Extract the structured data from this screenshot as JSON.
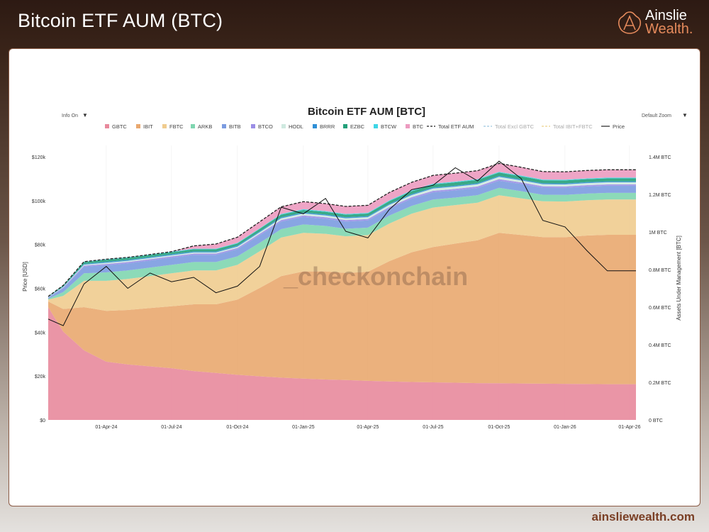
{
  "header": {
    "title": "Bitcoin ETF AUM (BTC)"
  },
  "logo": {
    "line1": "Ainslie",
    "line2": "Wealth."
  },
  "footer": {
    "url": "ainsliewealth.com"
  },
  "controls": {
    "info": "Info On",
    "zoom": "Default Zoom"
  },
  "watermark": "_checkonchain",
  "chart_data": {
    "type": "area",
    "title": "Bitcoin ETF AUM [BTC]",
    "ylabel_left": "Price [USD]",
    "ylabel_right": "Assets Under Management [BTC]",
    "ylim_left": [
      0,
      120000
    ],
    "ylim_right": [
      0,
      1400000
    ],
    "left_ticks": [
      "$0",
      "$20k",
      "$40k",
      "$60k",
      "$80k",
      "$100k",
      "$120k"
    ],
    "right_ticks": [
      "0 BTC",
      "0.2M BTC",
      "0.4M BTC",
      "0.6M BTC",
      "0.8M BTC",
      "1M BTC",
      "1.2M BTC",
      "1.4M BTC"
    ],
    "x_ticks": [
      {
        "date": "2024-04-01",
        "label": "01-Apr-24"
      },
      {
        "date": "2024-07-01",
        "label": "01-Jul-24"
      },
      {
        "date": "2024-10-01",
        "label": "01-Oct-24"
      },
      {
        "date": "2025-01-01",
        "label": "01-Jan-25"
      },
      {
        "date": "2025-04-01",
        "label": "01-Apr-25"
      },
      {
        "date": "2025-07-01",
        "label": "01-Jul-25"
      },
      {
        "date": "2025-10-01",
        "label": "01-Oct-25"
      },
      {
        "date": "2026-01-01",
        "label": "01-Jan-26"
      },
      {
        "date": "2026-04-01",
        "label": "01-Apr-26"
      }
    ],
    "x_domain": [
      "2024-01-11",
      "2026-04-10"
    ],
    "dates": [
      "2024-01-11",
      "2024-02-01",
      "2024-03-01",
      "2024-04-01",
      "2024-05-01",
      "2024-06-01",
      "2024-07-01",
      "2024-08-01",
      "2024-09-01",
      "2024-10-01",
      "2024-11-01",
      "2024-12-01",
      "2025-01-01",
      "2025-02-01",
      "2025-03-01",
      "2025-04-01",
      "2025-05-01",
      "2025-06-01",
      "2025-07-01",
      "2025-08-01",
      "2025-09-01",
      "2025-10-01",
      "2025-11-01",
      "2025-12-01",
      "2026-01-01",
      "2026-02-01",
      "2026-03-01",
      "2026-04-10"
    ],
    "legend": [
      "GBTC",
      "IBIT",
      "FBTC",
      "ARKB",
      "BITB",
      "BTCO",
      "HODL",
      "BRRR",
      "EZBC",
      "BTCW",
      "BTC",
      "Total ETF AUM",
      "Total Excl GBTC",
      "Total IBIT+FBTC",
      "Price"
    ],
    "series_unit": "thousand BTC",
    "series": [
      {
        "name": "GBTC",
        "color": "#e8899c",
        "values": [
          600,
          470,
          370,
          310,
          295,
          285,
          275,
          260,
          250,
          240,
          232,
          225,
          220,
          215,
          212,
          208,
          205,
          202,
          200,
          198,
          196,
          195,
          194,
          193,
          192,
          191,
          190,
          190
        ]
      },
      {
        "name": "IBIT",
        "color": "#e9a86f",
        "values": [
          30,
          120,
          230,
          270,
          290,
          310,
          330,
          355,
          365,
          400,
          470,
          540,
          570,
          575,
          570,
          580,
          640,
          690,
          720,
          740,
          760,
          800,
          790,
          780,
          780,
          790,
          795,
          795
        ]
      },
      {
        "name": "FBTC",
        "color": "#f0cc8f",
        "values": [
          10,
          70,
          140,
          160,
          165,
          170,
          175,
          180,
          180,
          185,
          195,
          205,
          205,
          200,
          195,
          195,
          200,
          205,
          210,
          205,
          200,
          200,
          195,
          190,
          190,
          188,
          188,
          188
        ]
      },
      {
        "name": "ARKB",
        "color": "#7fd6b0",
        "values": [
          5,
          20,
          40,
          45,
          45,
          45,
          45,
          45,
          45,
          45,
          45,
          45,
          45,
          42,
          40,
          40,
          42,
          42,
          43,
          40,
          40,
          40,
          38,
          35,
          35,
          35,
          35,
          35
        ]
      },
      {
        "name": "BITB",
        "color": "#7b9be0",
        "values": [
          5,
          20,
          35,
          38,
          38,
          38,
          38,
          38,
          38,
          38,
          40,
          40,
          40,
          38,
          38,
          38,
          38,
          38,
          38,
          38,
          38,
          38,
          38,
          38,
          38,
          38,
          38,
          38
        ]
      },
      {
        "name": "BTCO",
        "color": "#9b8ee6",
        "values": [
          2,
          4,
          6,
          7,
          7,
          7,
          7,
          7,
          7,
          7,
          8,
          8,
          8,
          8,
          8,
          8,
          8,
          8,
          8,
          8,
          8,
          8,
          8,
          7,
          7,
          7,
          7,
          7
        ]
      },
      {
        "name": "HODL",
        "color": "#cfe9e0",
        "values": [
          1,
          3,
          5,
          6,
          6,
          6,
          6,
          6,
          6,
          7,
          8,
          10,
          10,
          10,
          10,
          10,
          11,
          11,
          12,
          12,
          12,
          12,
          11,
          11,
          11,
          11,
          11,
          11
        ]
      },
      {
        "name": "BRRR",
        "color": "#2f8fd6",
        "values": [
          1,
          2,
          4,
          5,
          5,
          5,
          5,
          5,
          5,
          5,
          5,
          5,
          5,
          5,
          5,
          5,
          5,
          5,
          5,
          5,
          5,
          5,
          5,
          5,
          5,
          5,
          5,
          5
        ]
      },
      {
        "name": "EZBC",
        "color": "#23a07a",
        "values": [
          2,
          5,
          9,
          11,
          11,
          11,
          11,
          12,
          12,
          12,
          13,
          14,
          14,
          14,
          14,
          14,
          15,
          16,
          17,
          18,
          18,
          18,
          17,
          16,
          16,
          16,
          16,
          16
        ]
      },
      {
        "name": "BTCW",
        "color": "#3fd6e6",
        "values": [
          1,
          2,
          3,
          3,
          3,
          3,
          3,
          3,
          3,
          3,
          3,
          4,
          4,
          4,
          4,
          4,
          4,
          4,
          4,
          4,
          4,
          4,
          4,
          4,
          4,
          4,
          4,
          4
        ]
      },
      {
        "name": "BTC",
        "color": "#ec9bc0",
        "values": [
          0,
          0,
          0,
          0,
          0,
          0,
          0,
          15,
          25,
          30,
          35,
          38,
          40,
          40,
          40,
          40,
          42,
          43,
          44,
          45,
          45,
          45,
          44,
          42,
          42,
          42,
          42,
          42
        ]
      }
    ],
    "price": {
      "name": "Price",
      "color": "#111111",
      "values": [
        46000,
        43000,
        62000,
        70000,
        60000,
        67000,
        63000,
        65000,
        58000,
        61000,
        70000,
        97000,
        94000,
        101000,
        86000,
        83000,
        96000,
        105000,
        107000,
        115000,
        109000,
        118000,
        110000,
        91000,
        88000,
        77000,
        68000,
        68000
      ]
    },
    "total_line": {
      "name": "Total ETF AUM",
      "color": "#222222"
    }
  }
}
